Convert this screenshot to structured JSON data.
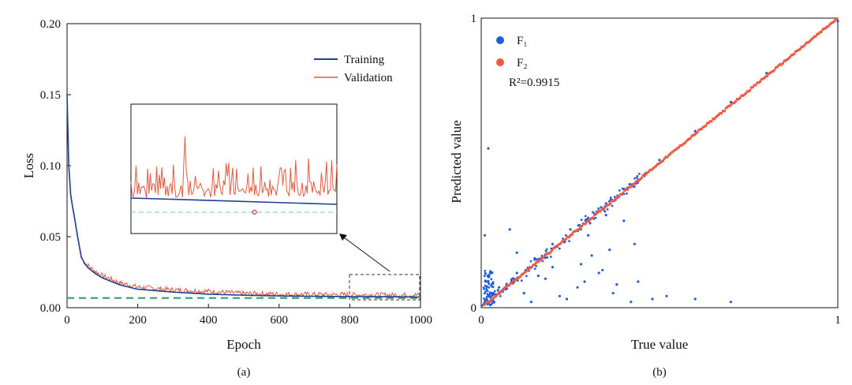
{
  "chart_data": [
    {
      "panel_label": "(a)",
      "type": "line",
      "xlabel": "Epoch",
      "ylabel": "Loss",
      "xlim": [
        0,
        1000
      ],
      "ylim": [
        0,
        0.2
      ],
      "xticks": [
        "0",
        "200",
        "400",
        "600",
        "800",
        "1000"
      ],
      "yticks": [
        "0.00",
        "0.05",
        "0.10",
        "0.15",
        "0.20"
      ],
      "grid": false,
      "legend_position": "top-right",
      "series": [
        {
          "name": "Training",
          "color": "#1f3f8f",
          "x": [
            0,
            5,
            10,
            15,
            20,
            30,
            40,
            50,
            60,
            80,
            100,
            150,
            200,
            300,
            400,
            500,
            600,
            700,
            800,
            900,
            1000
          ],
          "y": [
            0.15,
            0.1,
            0.08,
            0.072,
            0.065,
            0.05,
            0.036,
            0.031,
            0.028,
            0.024,
            0.021,
            0.016,
            0.013,
            0.011,
            0.0095,
            0.0088,
            0.0083,
            0.008,
            0.0078,
            0.0077,
            0.0075
          ]
        },
        {
          "name": "Validation",
          "color": "#e05a3f",
          "x": [
            0,
            5,
            10,
            15,
            20,
            30,
            40,
            50,
            60,
            80,
            100,
            150,
            200,
            300,
            400,
            500,
            600,
            700,
            800,
            900,
            1000
          ],
          "y": [
            0.148,
            0.098,
            0.079,
            0.071,
            0.064,
            0.049,
            0.035,
            0.031,
            0.029,
            0.025,
            0.022,
            0.017,
            0.014,
            0.012,
            0.011,
            0.0095,
            0.009,
            0.0088,
            0.0086,
            0.0085,
            0.0084
          ]
        }
      ],
      "reference_line": {
        "y": 0.0068,
        "color": "#3aa676",
        "style": "dashed"
      },
      "inset": {
        "zoom_region": {
          "x": [
            800,
            1000
          ],
          "y": [
            0,
            0.025
          ]
        },
        "marker": {
          "x": 920,
          "color": "#c0307a"
        }
      }
    },
    {
      "panel_label": "(b)",
      "type": "scatter",
      "xlabel": "True value",
      "ylabel": "Predicted value",
      "xlim": [
        0,
        1
      ],
      "ylim": [
        0,
        1
      ],
      "xticks": [
        "0",
        "1"
      ],
      "yticks": [
        "0",
        "1"
      ],
      "grid": false,
      "legend_position": "top-left",
      "annotation": "R²=0.9915",
      "series": [
        {
          "name": "F₁",
          "color": "#1f5fd6",
          "x": [
            0.01,
            0.015,
            0.02,
            0.03,
            0.05,
            0.1,
            0.15,
            0.2,
            0.25,
            0.3,
            0.35,
            0.4,
            0.5,
            0.6,
            0.7,
            0.8,
            0.9,
            1.0,
            0.02,
            0.01,
            0.08,
            0.12,
            0.18,
            0.22,
            0.28,
            0.33,
            0.38,
            0.42,
            0.44,
            0.36,
            0.3,
            0.24,
            0.16,
            0.1,
            0.06,
            0.52,
            0.6,
            0.7,
            0.4,
            0.35,
            0.27,
            0.2,
            0.14,
            0.31,
            0.37,
            0.43,
            0.48,
            0.34,
            0.29,
            0.025
          ],
          "y": [
            0.02,
            0.03,
            0.04,
            0.05,
            0.07,
            0.12,
            0.17,
            0.22,
            0.27,
            0.31,
            0.36,
            0.41,
            0.51,
            0.61,
            0.71,
            0.81,
            0.9,
            0.99,
            0.55,
            0.25,
            0.27,
            0.05,
            0.1,
            0.04,
            0.15,
            0.12,
            0.08,
            0.02,
            0.09,
            0.2,
            0.25,
            0.03,
            0.11,
            0.19,
            0.06,
            0.04,
            0.03,
            0.02,
            0.3,
            0.32,
            0.07,
            0.14,
            0.02,
            0.18,
            0.05,
            0.22,
            0.03,
            0.13,
            0.09,
            0.12
          ]
        },
        {
          "name": "F₂",
          "color": "#ef5a45",
          "x": [
            0.01,
            0.1,
            0.2,
            0.3,
            0.4,
            0.5,
            0.6,
            0.7,
            0.8,
            0.9,
            1.0
          ],
          "y": [
            0.01,
            0.1,
            0.2,
            0.3,
            0.4,
            0.5,
            0.6,
            0.7,
            0.8,
            0.9,
            1.0
          ]
        }
      ]
    }
  ]
}
